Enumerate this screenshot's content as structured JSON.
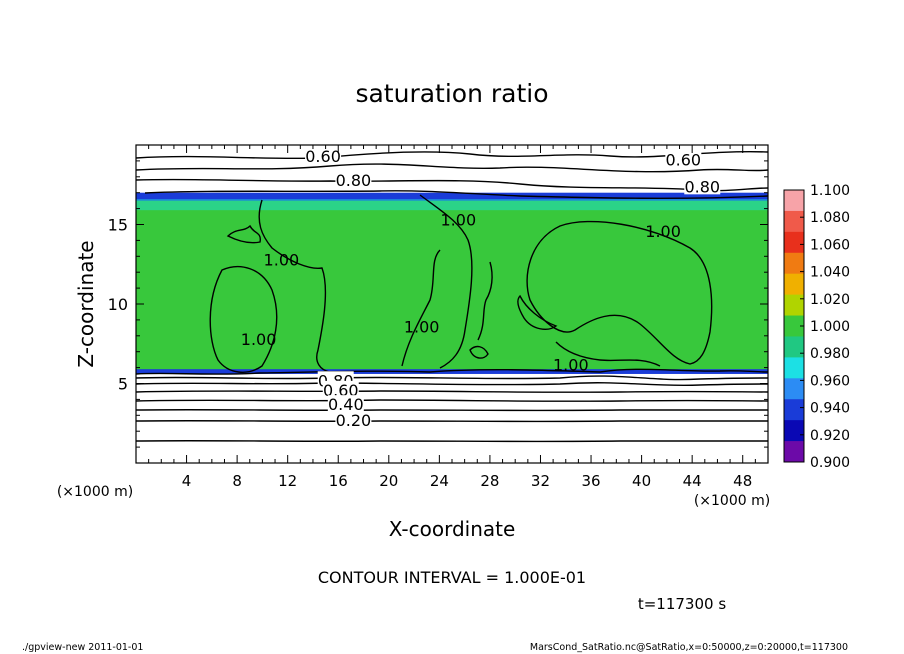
{
  "chart_data": {
    "type": "heatmap",
    "title": "saturation ratio",
    "xlabel": "X-coordinate",
    "ylabel": "Z-coordinate",
    "x_unit": "(×1000 m)",
    "y_unit": "(×1000 m)",
    "xlim": [
      0,
      50
    ],
    "ylim": [
      0,
      20
    ],
    "x_ticks": [
      4,
      8,
      12,
      16,
      20,
      24,
      28,
      32,
      36,
      40,
      44,
      48
    ],
    "y_ticks": [
      5,
      10,
      15
    ],
    "colorbar": {
      "levels": [
        "1.100",
        "1.080",
        "1.060",
        "1.040",
        "1.020",
        "1.000",
        "0.980",
        "0.960",
        "0.940",
        "0.920",
        "0.900"
      ],
      "colors": [
        "#f7a3a8",
        "#f05a4a",
        "#e8301c",
        "#f07b12",
        "#f0b000",
        "#b0d400",
        "#38c83c",
        "#20c882",
        "#1ce0e4",
        "#2c8cf4",
        "#1a3cd8",
        "#0a08b4",
        "#6c0aa8"
      ]
    },
    "contour_labels": [
      {
        "text": "0.60",
        "x": 14.8,
        "z": 19.3
      },
      {
        "text": "0.60",
        "x": 43.3,
        "z": 19.1
      },
      {
        "text": "0.80",
        "x": 17.2,
        "z": 17.8
      },
      {
        "text": "0.80",
        "x": 44.8,
        "z": 17.4
      },
      {
        "text": "1.00",
        "x": 25.5,
        "z": 15.3
      },
      {
        "text": "1.00",
        "x": 41.7,
        "z": 14.6
      },
      {
        "text": "1.00",
        "x": 11.5,
        "z": 12.8
      },
      {
        "text": "1.00",
        "x": 22.6,
        "z": 8.6
      },
      {
        "text": "1.00",
        "x": 9.7,
        "z": 7.8
      },
      {
        "text": "1.00",
        "x": 34.4,
        "z": 6.2
      },
      {
        "text": "0.80",
        "x": 15.8,
        "z": 5.2
      },
      {
        "text": "0.60",
        "x": 16.2,
        "z": 4.6
      },
      {
        "text": "0.40",
        "x": 16.6,
        "z": 3.7
      },
      {
        "text": "0.20",
        "x": 17.2,
        "z": 2.7
      }
    ],
    "contour_interval": "CONTOUR INTERVAL = 1.000E-01",
    "time": "t=117300 s",
    "grid": false
  },
  "footer": {
    "left": "./gpview-new   2011-01-01",
    "right": "MarsCond_SatRatio.nc@SatRatio,x=0:50000,z=0:20000,t=117300"
  }
}
